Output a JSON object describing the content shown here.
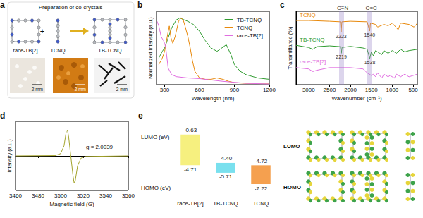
{
  "scheme": {
    "panel": "a",
    "title": "Preparation of co-crystals",
    "reactants": [
      "race-TB[2]",
      "TCNQ"
    ],
    "operator": "+",
    "product": "TB-TCNQ",
    "scale_bar": "2 mm"
  },
  "orbitals": {
    "rows": [
      "LUMO",
      "HOMO"
    ]
  },
  "chart_data": [
    {
      "panel": "b",
      "type": "line",
      "xlabel": "Wavelength (nm)",
      "ylabel": "Normalized Intensity (a.u.)",
      "xlim": [
        230,
        1200
      ],
      "xticks": [
        300,
        600,
        900,
        1200
      ],
      "ylim": [
        0,
        1.1
      ],
      "tick_labels": "x",
      "grid": false,
      "legend": "upper right",
      "series": [
        {
          "name": "TB-TCNQ",
          "color": "#2e9a2e",
          "x": [
            250,
            280,
            300,
            330,
            360,
            400,
            430,
            470,
            500,
            550,
            600,
            650,
            700,
            750,
            800,
            830,
            870,
            900,
            950,
            1000,
            1100,
            1200
          ],
          "values": [
            0.4,
            0.5,
            0.55,
            0.7,
            0.85,
            0.97,
            1.0,
            0.97,
            0.95,
            0.9,
            0.8,
            0.66,
            0.55,
            0.5,
            0.56,
            0.6,
            0.45,
            0.3,
            0.2,
            0.15,
            0.1,
            0.08
          ]
        },
        {
          "name": "TCNQ",
          "color": "#e8890c",
          "x": [
            250,
            280,
            300,
            320,
            340,
            355,
            370,
            390,
            420,
            440,
            460,
            480,
            500,
            520,
            540,
            560,
            600,
            650,
            700,
            750,
            800,
            850,
            900,
            1000,
            1100,
            1200
          ],
          "values": [
            0.3,
            0.4,
            0.5,
            0.7,
            0.88,
            0.7,
            0.62,
            0.72,
            0.95,
            1.0,
            0.97,
            0.85,
            0.72,
            0.55,
            0.35,
            0.2,
            0.1,
            0.08,
            0.08,
            0.1,
            0.08,
            0.05,
            0.03,
            0.02,
            0.02,
            0.02
          ]
        },
        {
          "name": "race-TB[2]",
          "color": "#e06ee0",
          "x": [
            235,
            250,
            270,
            290,
            300,
            310,
            330,
            360,
            400,
            500,
            600,
            700,
            800,
            1000,
            1200
          ],
          "values": [
            0.95,
            0.88,
            0.72,
            0.66,
            0.62,
            0.55,
            0.25,
            0.15,
            0.12,
            0.1,
            0.09,
            0.07,
            0.05,
            0.02,
            0.01
          ]
        }
      ]
    },
    {
      "panel": "c",
      "type": "line",
      "xlabel": "Wavenumber (cm⁻¹)",
      "ylabel": "Transmittance (%)",
      "xlim": [
        3300,
        400
      ],
      "xticks": [
        3000,
        2500,
        2000,
        1500,
        1000,
        500
      ],
      "ylim": [
        0.2,
        3.0
      ],
      "tick_labels": "x",
      "grid": false,
      "series": [
        {
          "name": "TCNQ",
          "color": "#e8890c",
          "x": [
            3300,
            3000,
            2500,
            2240,
            2223,
            2205,
            2000,
            1600,
            1540,
            1520,
            1400,
            1350,
            1200,
            1100,
            1000,
            860,
            800,
            600,
            480,
            400
          ],
          "values": [
            2.65,
            2.65,
            2.62,
            2.6,
            2.2,
            2.6,
            2.62,
            2.6,
            2.25,
            2.55,
            2.5,
            2.4,
            2.5,
            2.45,
            2.55,
            2.3,
            2.55,
            2.5,
            2.4,
            2.55
          ]
        },
        {
          "name": "TB-TCNQ",
          "color": "#2e9a2e",
          "x": [
            3300,
            3000,
            2900,
            2800,
            2500,
            2240,
            2219,
            2200,
            2000,
            1700,
            1600,
            1538,
            1500,
            1450,
            1400,
            1300,
            1250,
            1200,
            1100,
            1000,
            900,
            800,
            700,
            600,
            400
          ],
          "values": [
            1.7,
            1.62,
            1.55,
            1.65,
            1.68,
            1.65,
            1.4,
            1.62,
            1.66,
            1.6,
            1.55,
            1.2,
            1.45,
            1.3,
            1.5,
            1.4,
            1.35,
            1.5,
            1.4,
            1.5,
            1.4,
            1.55,
            1.45,
            1.5,
            1.55
          ]
        },
        {
          "name": "race-TB[2]",
          "color": "#e06ee0",
          "x": [
            3300,
            3000,
            2900,
            2800,
            2500,
            2000,
            1700,
            1600,
            1500,
            1450,
            1400,
            1350,
            1250,
            1200,
            1100,
            1050,
            950,
            900,
            800,
            700,
            600,
            500,
            400
          ],
          "values": [
            0.85,
            0.8,
            0.7,
            0.75,
            0.85,
            0.85,
            0.8,
            0.65,
            0.55,
            0.6,
            0.5,
            0.65,
            0.45,
            0.6,
            0.5,
            0.55,
            0.45,
            0.6,
            0.5,
            0.6,
            0.5,
            0.55,
            0.6
          ]
        }
      ],
      "bands": [
        {
          "x": 2223,
          "label": "−C≡N"
        },
        {
          "x": 1540,
          "label": "−C=C"
        }
      ],
      "annotations": [
        {
          "series": "TCNQ",
          "x": 2223,
          "text": "2223"
        },
        {
          "series": "TCNQ",
          "x": 1540,
          "text": "1540"
        },
        {
          "series": "TB-TCNQ",
          "x": 2219,
          "text": "2219"
        },
        {
          "series": "TB-TCNQ",
          "x": 1538,
          "text": "1538"
        }
      ]
    },
    {
      "panel": "d",
      "type": "line",
      "xlabel": "Magnetic field (G)",
      "ylabel": "Intensity (a.u.)",
      "xlim": [
        3460,
        3560
      ],
      "xticks": [
        3460,
        3480,
        3500,
        3520,
        3540,
        3560
      ],
      "ylim": [
        -1.2,
        1.2
      ],
      "tick_labels": "x",
      "grid": false,
      "color": "#a3a32b",
      "x": [
        3460,
        3495,
        3500,
        3503,
        3505,
        3506,
        3507,
        3509,
        3511,
        3512,
        3513,
        3515,
        3518,
        3522,
        3560
      ],
      "values": [
        0,
        0.01,
        0.08,
        0.35,
        0.85,
        0.9,
        0.7,
        0,
        -0.7,
        -0.95,
        -0.85,
        -0.35,
        -0.08,
        -0.02,
        0
      ],
      "annotations": [
        "g = 2.0039"
      ]
    },
    {
      "panel": "e",
      "type": "range_bar",
      "categories": [
        "race-TB[2]",
        "TB-TCNQ",
        "TCNQ"
      ],
      "colors": [
        "#f6f07f",
        "#79e0ee",
        "#f5a04f"
      ],
      "series": [
        {
          "name": "LUMO",
          "values": [
            -0.63,
            -4.4,
            -4.72
          ],
          "value_labels": [
            "-0.63",
            "-4.40",
            "-4.72"
          ]
        },
        {
          "name": "HOMO",
          "values": [
            -4.71,
            -5.71,
            -7.22
          ],
          "value_labels": [
            "-4.71",
            "-5.71",
            "-7.22"
          ]
        }
      ],
      "ylim": [
        -9,
        0
      ],
      "tick_labels": "x",
      "data_labels": true,
      "grid": false,
      "annotations": [
        "LUMO (eV)",
        "HOMO (eV)"
      ]
    }
  ]
}
